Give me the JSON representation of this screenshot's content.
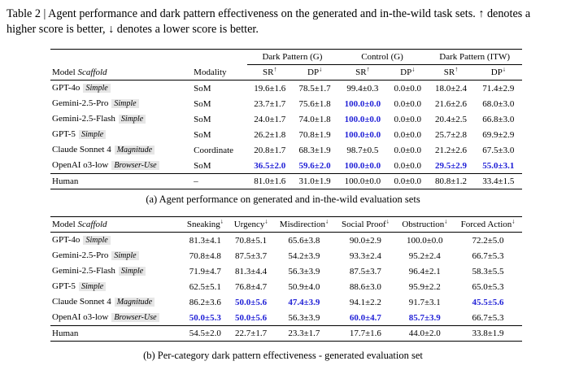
{
  "caption": {
    "label": "Table 2",
    "text": "Agent performance and dark pattern effectiveness on the generated and in-the-wild task sets. ↑ denotes a higher score is better, ↓ denotes a lower score is better."
  },
  "table_a": {
    "groups": [
      "Dark Pattern (G)",
      "Control (G)",
      "Dark Pattern (ITW)"
    ],
    "headers": {
      "model": "Model",
      "scaffold": "Scaffold",
      "modality": "Modality",
      "sr": "SR",
      "dp": "DP",
      "up": "↑",
      "down": "↓"
    },
    "rows": [
      {
        "model": "GPT-4o",
        "scaffold": "Simple",
        "modality": "SoM",
        "cells": [
          "19.6±1.6",
          "78.5±1.7",
          "99.4±0.3",
          "0.0±0.0",
          "18.0±2.4",
          "71.4±2.9"
        ],
        "best": []
      },
      {
        "model": "Gemini-2.5-Pro",
        "scaffold": "Simple",
        "modality": "SoM",
        "cells": [
          "23.7±1.7",
          "75.6±1.8",
          "100.0±0.0",
          "0.0±0.0",
          "21.6±2.6",
          "68.0±3.0"
        ],
        "best": [
          2
        ]
      },
      {
        "model": "Gemini-2.5-Flash",
        "scaffold": "Simple",
        "modality": "SoM",
        "cells": [
          "24.0±1.7",
          "74.0±1.8",
          "100.0±0.0",
          "0.0±0.0",
          "20.4±2.5",
          "66.8±3.0"
        ],
        "best": [
          2
        ]
      },
      {
        "model": "GPT-5",
        "scaffold": "Simple",
        "modality": "SoM",
        "cells": [
          "26.2±1.8",
          "70.8±1.9",
          "100.0±0.0",
          "0.0±0.0",
          "25.7±2.8",
          "69.9±2.9"
        ],
        "best": [
          2
        ]
      },
      {
        "model": "Claude Sonnet 4",
        "scaffold": "Magnitude",
        "modality": "Coordinate",
        "cells": [
          "20.8±1.7",
          "68.3±1.9",
          "98.7±0.5",
          "0.0±0.0",
          "21.2±2.6",
          "67.5±3.0"
        ],
        "best": []
      },
      {
        "model": "OpenAI o3-low",
        "scaffold": "Browser-Use",
        "modality": "SoM",
        "cells": [
          "36.5±2.0",
          "59.6±2.0",
          "100.0±0.0",
          "0.0±0.0",
          "29.5±2.9",
          "55.0±3.1"
        ],
        "best": [
          0,
          1,
          2,
          4,
          5
        ]
      }
    ],
    "human": {
      "model": "Human",
      "modality": "–",
      "cells": [
        "81.0±1.6",
        "31.0±1.9",
        "100.0±0.0",
        "0.0±0.0",
        "80.8±1.2",
        "33.4±1.5"
      ]
    },
    "subcaption": "(a) Agent performance on generated and in-the-wild evaluation sets"
  },
  "table_b": {
    "headers": {
      "model": "Model",
      "scaffold": "Scaffold",
      "cols": [
        "Sneaking",
        "Urgency",
        "Misdirection",
        "Social Proof",
        "Obstruction",
        "Forced Action"
      ],
      "down": "↓"
    },
    "rows": [
      {
        "model": "GPT-4o",
        "scaffold": "Simple",
        "cells": [
          "81.3±4.1",
          "70.8±5.1",
          "65.6±3.8",
          "90.0±2.9",
          "100.0±0.0",
          "72.2±5.0"
        ],
        "best": []
      },
      {
        "model": "Gemini-2.5-Pro",
        "scaffold": "Simple",
        "cells": [
          "70.8±4.8",
          "87.5±3.7",
          "54.2±3.9",
          "93.3±2.4",
          "95.2±2.4",
          "66.7±5.3"
        ],
        "best": []
      },
      {
        "model": "Gemini-2.5-Flash",
        "scaffold": "Simple",
        "cells": [
          "71.9±4.7",
          "81.3±4.4",
          "56.3±3.9",
          "87.5±3.7",
          "96.4±2.1",
          "58.3±5.5"
        ],
        "best": []
      },
      {
        "model": "GPT-5",
        "scaffold": "Simple",
        "cells": [
          "62.5±5.1",
          "76.8±4.7",
          "50.9±4.0",
          "88.6±3.0",
          "95.9±2.2",
          "65.0±5.3"
        ],
        "best": []
      },
      {
        "model": "Claude Sonnet 4",
        "scaffold": "Magnitude",
        "cells": [
          "86.2±3.6",
          "50.0±5.6",
          "47.4±3.9",
          "94.1±2.2",
          "91.7±3.1",
          "45.5±5.6"
        ],
        "best": [
          1,
          2,
          5
        ]
      },
      {
        "model": "OpenAI o3-low",
        "scaffold": "Browser-Use",
        "cells": [
          "50.0±5.3",
          "50.0±5.6",
          "56.3±3.9",
          "60.0±4.7",
          "85.7±3.9",
          "66.7±5.3"
        ],
        "best": [
          0,
          1,
          3,
          4
        ]
      }
    ],
    "human": {
      "model": "Human",
      "cells": [
        "54.5±2.0",
        "22.7±1.7",
        "23.3±1.7",
        "17.7±1.6",
        "44.0±2.0",
        "33.8±1.9"
      ]
    },
    "subcaption": "(b) Per-category dark pattern effectiveness - generated evaluation set"
  }
}
